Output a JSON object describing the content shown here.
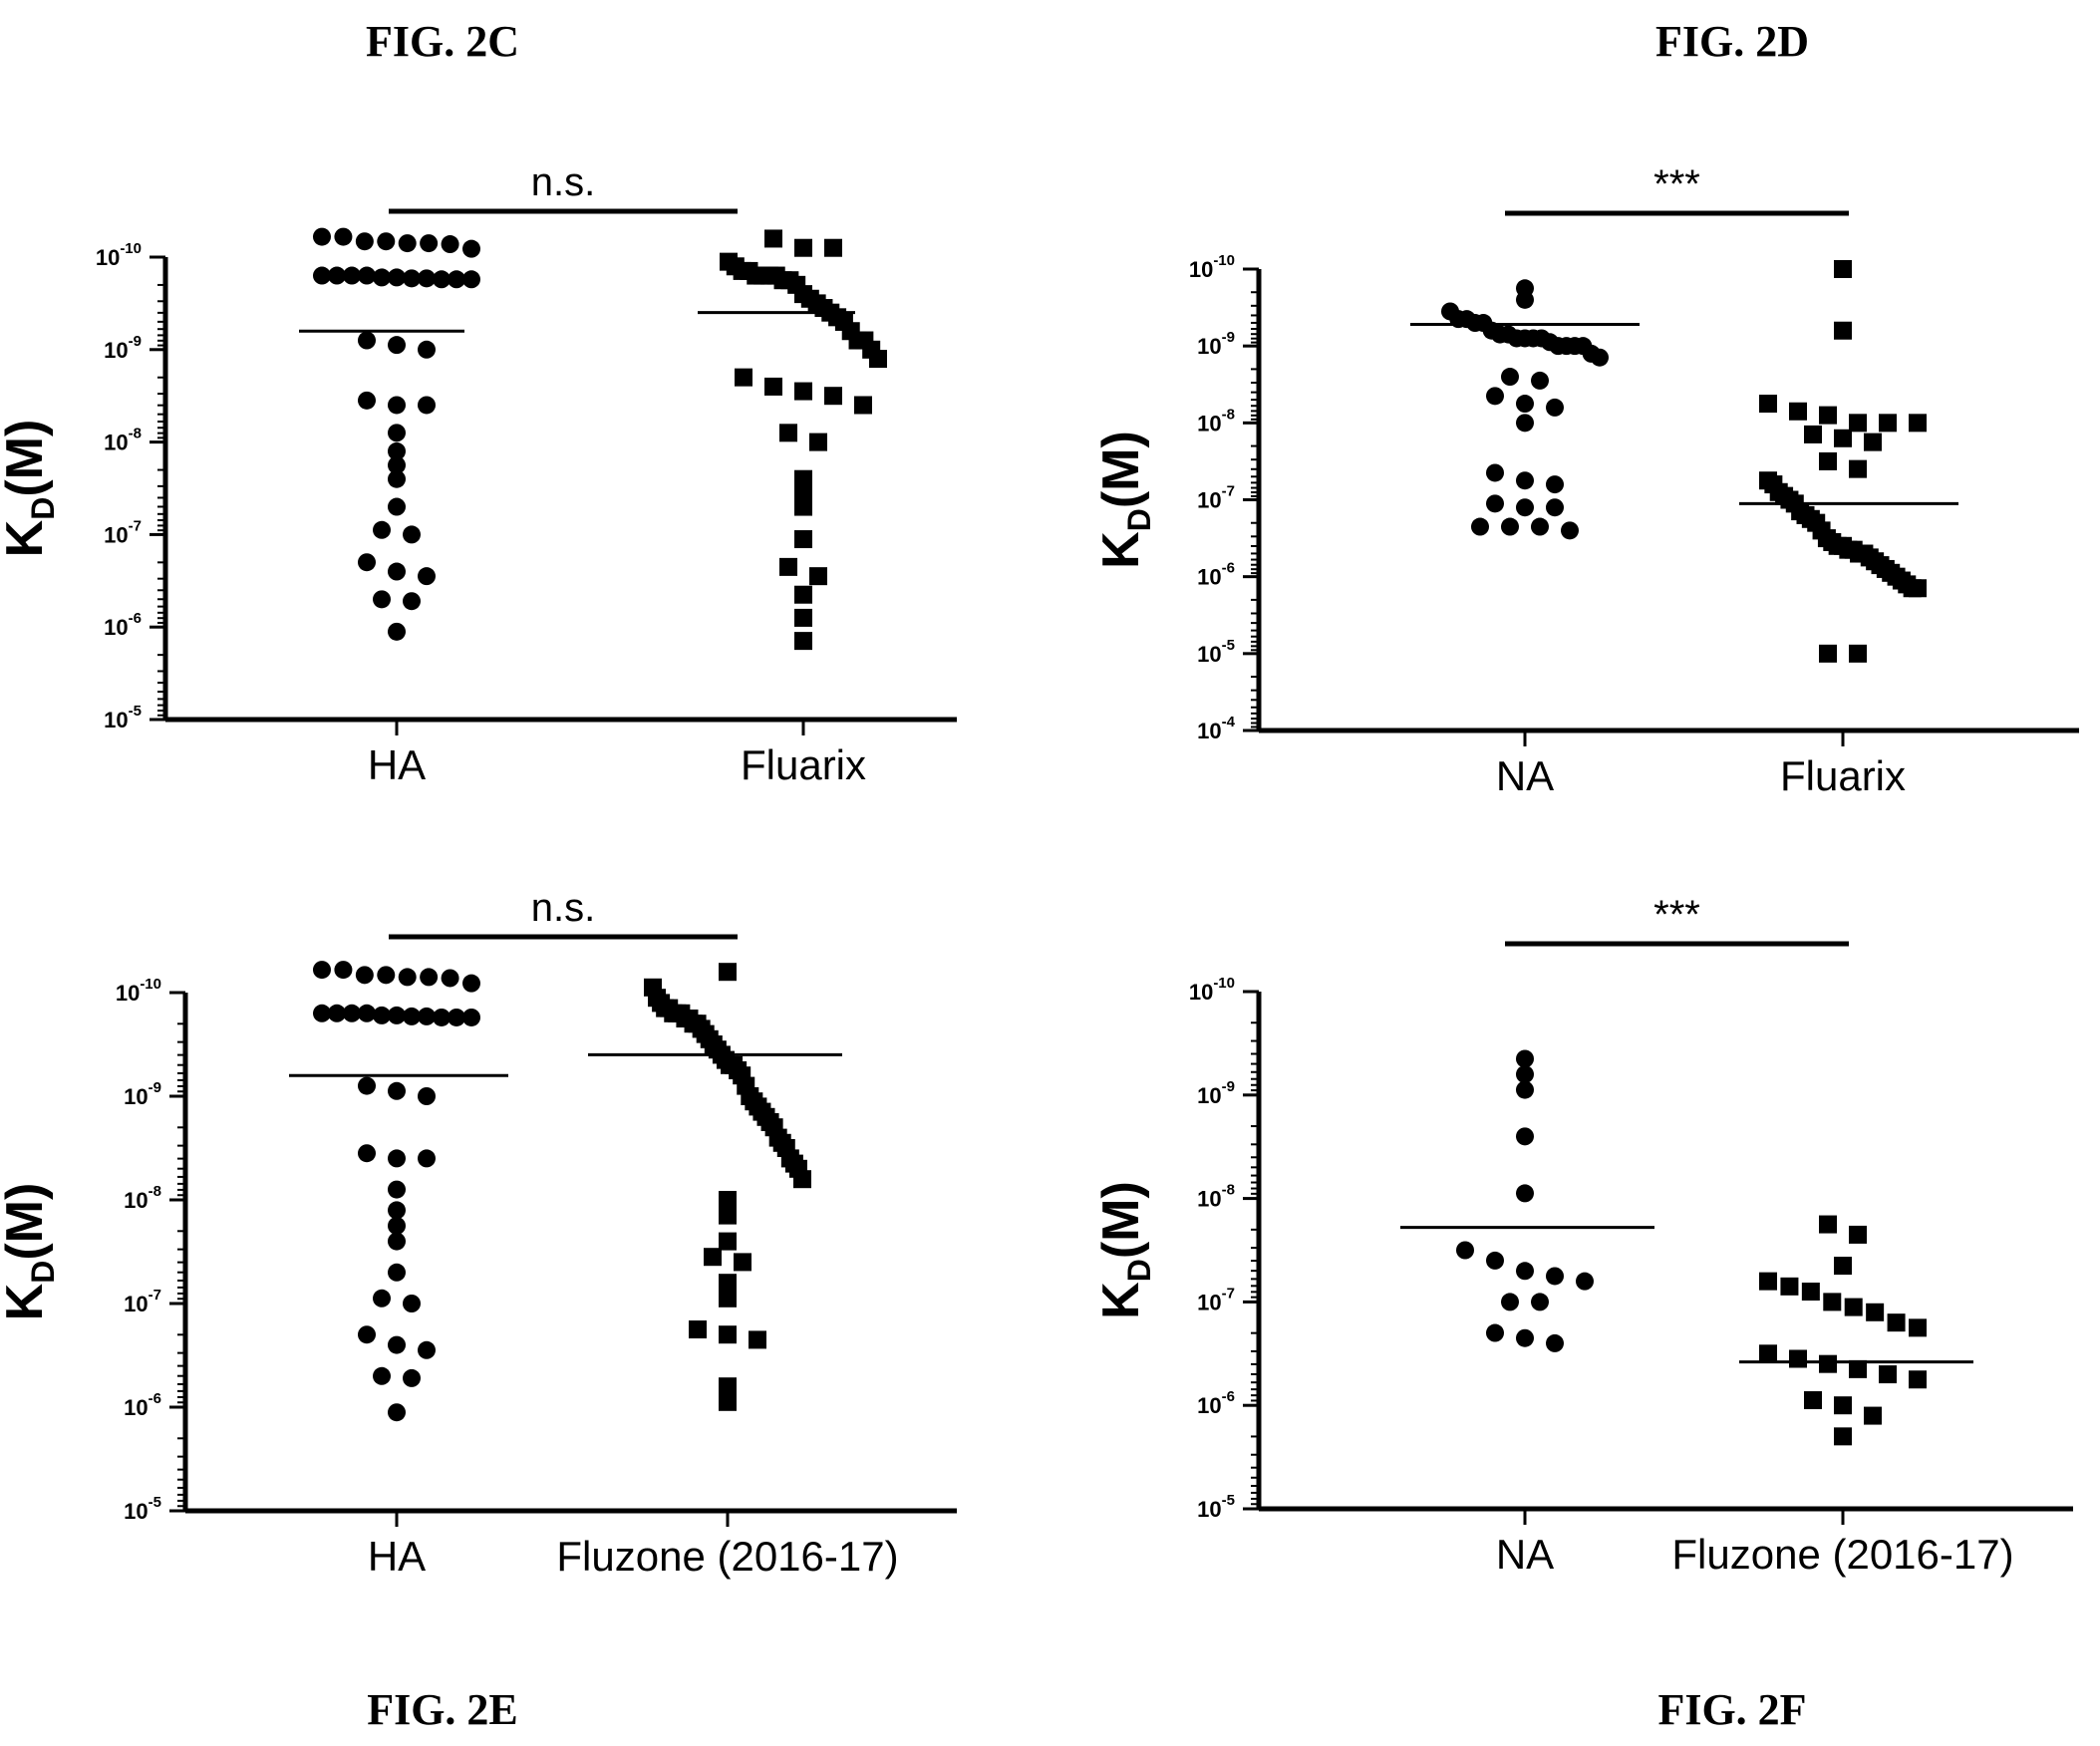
{
  "figure_labels": {
    "c": "FIG. 2C",
    "d": "FIG. 2D",
    "e": "FIG. 2E",
    "f": "FIG. 2F"
  },
  "chart_data": [
    {
      "id": "2c",
      "type": "scatter",
      "ylabel": {
        "main": "K",
        "sub": "D",
        "rest": "(M)"
      },
      "y_scale": "log",
      "y_axis_note": "values are log10 K_D exponent magnitudes shown as tick labels 10^-n",
      "yticks": [
        10,
        9,
        8,
        7,
        6,
        5
      ],
      "ylim": [
        10,
        5
      ],
      "categories": [
        "HA",
        "Fluarix"
      ],
      "significance": "n.s.",
      "groups": [
        {
          "category": "HA",
          "marker": "circle",
          "median": 9.2,
          "values": [
            10.22,
            10.17,
            10.15,
            10.14,
            10.09,
            10.15,
            10.17,
            10.22,
            9.8,
            9.8,
            9.78,
            9.77,
            9.76,
            9.76,
            9.76,
            9.77,
            9.78,
            9.8,
            9.8,
            9.1,
            9.05,
            9.0,
            8.4,
            8.4,
            8.45,
            8.1,
            7.9,
            7.75,
            7.6,
            7.3,
            7.05,
            7.0,
            6.7,
            6.55,
            6.6,
            6.3,
            6.28,
            5.95
          ]
        },
        {
          "category": "Fluarix",
          "marker": "square",
          "median": 9.4,
          "values": [
            10.2,
            10.1,
            10.1,
            9.95,
            9.9,
            9.85,
            9.85,
            9.8,
            9.8,
            9.8,
            9.8,
            9.75,
            9.75,
            9.7,
            9.6,
            9.55,
            9.5,
            9.45,
            9.4,
            9.35,
            9.3,
            9.2,
            9.1,
            9.1,
            9.0,
            8.9,
            8.7,
            8.6,
            8.5,
            8.55,
            8.4,
            8.1,
            8.0,
            7.6,
            7.45,
            7.3,
            6.95,
            6.65,
            6.55,
            6.35,
            6.1,
            5.85
          ]
        }
      ]
    },
    {
      "id": "2d",
      "type": "scatter",
      "ylabel": {
        "main": "K",
        "sub": "D",
        "rest": "(M)"
      },
      "y_scale": "log",
      "y_axis_note": "values are log10 K_D exponent magnitudes shown as tick labels 10^-n",
      "yticks": [
        10,
        9,
        8,
        7,
        6,
        5,
        4
      ],
      "ylim": [
        10,
        4
      ],
      "categories": [
        "NA",
        "Fluarix"
      ],
      "significance": "***",
      "groups": [
        {
          "category": "NA",
          "marker": "circle",
          "median": 9.28,
          "values": [
            9.75,
            9.6,
            9.45,
            9.35,
            9.2,
            9.15,
            9.1,
            9.05,
            9.0,
            9.0,
            9.0,
            9.0,
            9.35,
            9.3,
            9.3,
            9.15,
            9.1,
            9.1,
            9.1,
            8.9,
            8.85,
            8.6,
            8.55,
            8.35,
            8.25,
            8.2,
            8.0,
            7.35,
            7.2,
            7.25,
            6.95,
            6.9,
            6.9,
            6.65,
            6.65,
            6.65,
            6.6
          ]
        },
        {
          "category": "Fluarix",
          "marker": "square",
          "median": 6.95,
          "values": [
            10.0,
            9.2,
            8.25,
            8.15,
            8.1,
            8.0,
            8.0,
            8.0,
            7.85,
            7.8,
            7.75,
            7.5,
            7.4,
            7.25,
            7.2,
            7.1,
            7.05,
            7.0,
            6.95,
            6.85,
            6.8,
            6.75,
            6.7,
            6.6,
            6.5,
            6.45,
            6.4,
            6.4,
            6.35,
            6.35,
            6.3,
            6.3,
            6.25,
            6.2,
            6.15,
            6.1,
            6.05,
            6.0,
            5.95,
            5.9,
            5.85,
            5.85,
            5.0,
            5.0
          ]
        }
      ]
    },
    {
      "id": "2e",
      "type": "scatter",
      "ylabel": {
        "main": "K",
        "sub": "D",
        "rest": "(M)"
      },
      "y_scale": "log",
      "y_axis_note": "values are log10 K_D exponent magnitudes shown as tick labels 10^-n",
      "yticks": [
        10,
        9,
        8,
        7,
        6,
        5
      ],
      "ylim": [
        10,
        5
      ],
      "categories": [
        "HA",
        "Fluzone (2016-17)"
      ],
      "significance": "n.s.",
      "groups": [
        {
          "category": "HA",
          "marker": "circle",
          "median": 9.2,
          "values": [
            10.22,
            10.17,
            10.15,
            10.14,
            10.09,
            10.15,
            10.17,
            10.22,
            9.8,
            9.8,
            9.78,
            9.77,
            9.76,
            9.76,
            9.76,
            9.77,
            9.78,
            9.8,
            9.8,
            9.1,
            9.05,
            9.0,
            8.4,
            8.4,
            8.45,
            8.1,
            7.9,
            7.75,
            7.6,
            7.3,
            7.05,
            7.0,
            6.7,
            6.55,
            6.6,
            6.3,
            6.28,
            5.95
          ]
        },
        {
          "category": "Fluzone (2016-17)",
          "marker": "square",
          "median": 9.4,
          "values": [
            10.2,
            10.05,
            9.95,
            9.9,
            9.85,
            9.85,
            9.8,
            9.8,
            9.8,
            9.75,
            9.75,
            9.7,
            9.7,
            9.65,
            9.6,
            9.55,
            9.5,
            9.45,
            9.4,
            9.35,
            9.3,
            9.3,
            9.25,
            9.2,
            9.1,
            9.0,
            8.95,
            8.9,
            8.85,
            8.8,
            8.75,
            8.7,
            8.6,
            8.55,
            8.5,
            8.4,
            8.35,
            8.3,
            8.2,
            8.0,
            7.85,
            7.6,
            7.45,
            7.4,
            7.2,
            7.05,
            6.75,
            6.7,
            6.65,
            6.2,
            6.05
          ]
        }
      ]
    },
    {
      "id": "2f",
      "type": "scatter",
      "ylabel": {
        "main": "K",
        "sub": "D",
        "rest": "(M)"
      },
      "y_scale": "log",
      "y_axis_note": "values are log10 K_D exponent magnitudes shown as tick labels 10^-n",
      "yticks": [
        10,
        9,
        8,
        7,
        6,
        5
      ],
      "ylim": [
        10,
        5
      ],
      "categories": [
        "NA",
        "Fluzone (2016-17)"
      ],
      "significance": "***",
      "groups": [
        {
          "category": "NA",
          "marker": "circle",
          "median": 7.72,
          "values": [
            9.35,
            9.2,
            9.05,
            8.6,
            8.05,
            7.5,
            7.4,
            7.3,
            7.25,
            7.2,
            7.0,
            7.0,
            6.7,
            6.65,
            6.6
          ]
        },
        {
          "category": "Fluzone (2016-17)",
          "marker": "square",
          "median": 6.42,
          "values": [
            7.75,
            7.65,
            7.35,
            7.2,
            7.15,
            7.1,
            7.0,
            6.95,
            6.9,
            6.8,
            6.75,
            6.5,
            6.45,
            6.4,
            6.35,
            6.3,
            6.25,
            6.05,
            6.0,
            5.9,
            5.7
          ]
        }
      ]
    }
  ]
}
